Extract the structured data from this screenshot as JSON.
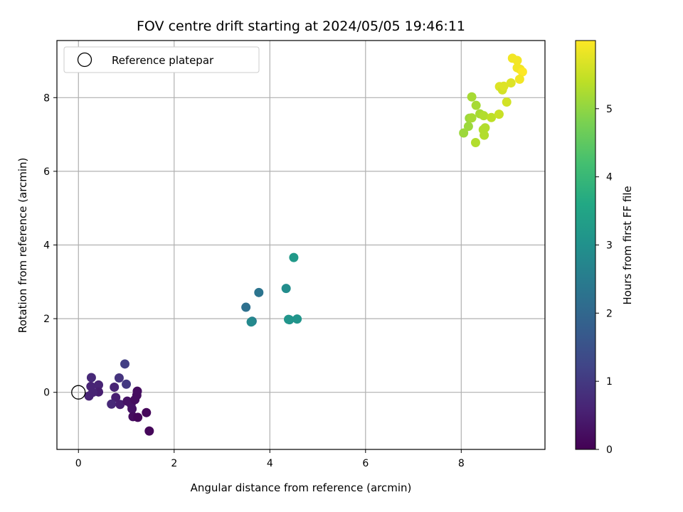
{
  "chart_data": {
    "type": "scatter",
    "title": "FOV centre drift starting at 2024/05/05 19:46:11",
    "xlabel": "Angular distance from reference (arcmin)",
    "ylabel": "Rotation from reference (arcmin)",
    "xlim": [
      -0.45,
      9.75
    ],
    "ylim": [
      -1.55,
      9.55
    ],
    "xticks": [
      0,
      2,
      4,
      6,
      8
    ],
    "yticks": [
      0,
      2,
      4,
      6,
      8
    ],
    "grid": true,
    "legend": {
      "position": "top-left",
      "entries": [
        "Reference platepar"
      ]
    },
    "colorbar": {
      "label": "Hours from first FF file",
      "range": [
        0,
        6
      ],
      "ticks": [
        0,
        1,
        2,
        3,
        4,
        5
      ],
      "colormap": "viridis"
    },
    "reference_point": {
      "x": 0,
      "y": 0
    },
    "series": [
      {
        "points": [
          {
            "x": 0.27,
            "y": 0.4,
            "c": 0.7
          },
          {
            "x": 0.26,
            "y": 0.16,
            "c": 0.6
          },
          {
            "x": 0.42,
            "y": 0.2,
            "c": 0.6
          },
          {
            "x": 0.42,
            "y": 0.01,
            "c": 0.5
          },
          {
            "x": 0.3,
            "y": 0.0,
            "c": 0.6
          },
          {
            "x": 0.22,
            "y": -0.1,
            "c": 0.6
          },
          {
            "x": 0.97,
            "y": 0.77,
            "c": 1.1
          },
          {
            "x": 0.85,
            "y": 0.39,
            "c": 0.9
          },
          {
            "x": 1.0,
            "y": 0.22,
            "c": 1.0
          },
          {
            "x": 0.75,
            "y": 0.14,
            "c": 0.6
          },
          {
            "x": 0.78,
            "y": -0.14,
            "c": 0.5
          },
          {
            "x": 0.69,
            "y": -0.32,
            "c": 0.7
          },
          {
            "x": 0.87,
            "y": -0.33,
            "c": 0.5
          },
          {
            "x": 1.02,
            "y": -0.24,
            "c": 0.3
          },
          {
            "x": 1.1,
            "y": -0.32,
            "c": 0.3
          },
          {
            "x": 1.12,
            "y": -0.45,
            "c": 0.3
          },
          {
            "x": 1.18,
            "y": -0.2,
            "c": 0.2
          },
          {
            "x": 1.22,
            "y": -0.08,
            "c": 0.2
          },
          {
            "x": 1.23,
            "y": 0.03,
            "c": 0.2
          },
          {
            "x": 1.14,
            "y": -0.66,
            "c": 0.2
          },
          {
            "x": 1.24,
            "y": -0.68,
            "c": 0.1
          },
          {
            "x": 1.42,
            "y": -0.55,
            "c": 0.1
          },
          {
            "x": 1.48,
            "y": -1.05,
            "c": 0.1
          },
          {
            "x": 3.5,
            "y": 2.31,
            "c": 2.2
          },
          {
            "x": 3.77,
            "y": 2.71,
            "c": 2.3
          },
          {
            "x": 3.63,
            "y": 1.93,
            "c": 2.5
          },
          {
            "x": 3.61,
            "y": 1.91,
            "c": 2.8
          },
          {
            "x": 4.34,
            "y": 2.82,
            "c": 2.9
          },
          {
            "x": 4.41,
            "y": 1.97,
            "c": 3.0
          },
          {
            "x": 4.39,
            "y": 1.98,
            "c": 3.1
          },
          {
            "x": 4.57,
            "y": 1.99,
            "c": 3.1
          },
          {
            "x": 4.5,
            "y": 3.66,
            "c": 3.2
          },
          {
            "x": 8.05,
            "y": 7.04,
            "c": 5.1
          },
          {
            "x": 8.15,
            "y": 7.22,
            "c": 5.1
          },
          {
            "x": 8.17,
            "y": 7.44,
            "c": 5.1
          },
          {
            "x": 8.22,
            "y": 8.02,
            "c": 5.2
          },
          {
            "x": 8.22,
            "y": 7.45,
            "c": 5.2
          },
          {
            "x": 8.31,
            "y": 7.79,
            "c": 5.2
          },
          {
            "x": 8.39,
            "y": 7.56,
            "c": 5.2
          },
          {
            "x": 8.47,
            "y": 7.51,
            "c": 5.3
          },
          {
            "x": 8.46,
            "y": 7.13,
            "c": 5.3
          },
          {
            "x": 8.5,
            "y": 7.18,
            "c": 5.3
          },
          {
            "x": 8.48,
            "y": 6.98,
            "c": 5.3
          },
          {
            "x": 8.3,
            "y": 6.78,
            "c": 5.3
          },
          {
            "x": 8.63,
            "y": 7.46,
            "c": 5.4
          },
          {
            "x": 8.79,
            "y": 7.55,
            "c": 5.5
          },
          {
            "x": 8.8,
            "y": 8.3,
            "c": 5.7
          },
          {
            "x": 8.86,
            "y": 8.21,
            "c": 5.6
          },
          {
            "x": 8.95,
            "y": 7.88,
            "c": 5.6
          },
          {
            "x": 9.04,
            "y": 8.4,
            "c": 5.7
          },
          {
            "x": 8.89,
            "y": 8.31,
            "c": 5.7
          },
          {
            "x": 9.07,
            "y": 9.07,
            "c": 5.9
          },
          {
            "x": 9.17,
            "y": 9.01,
            "c": 5.9
          },
          {
            "x": 9.17,
            "y": 8.81,
            "c": 5.9
          },
          {
            "x": 9.23,
            "y": 8.77,
            "c": 5.9
          },
          {
            "x": 9.28,
            "y": 8.7,
            "c": 6.0
          },
          {
            "x": 9.22,
            "y": 8.5,
            "c": 5.9
          }
        ]
      }
    ]
  }
}
